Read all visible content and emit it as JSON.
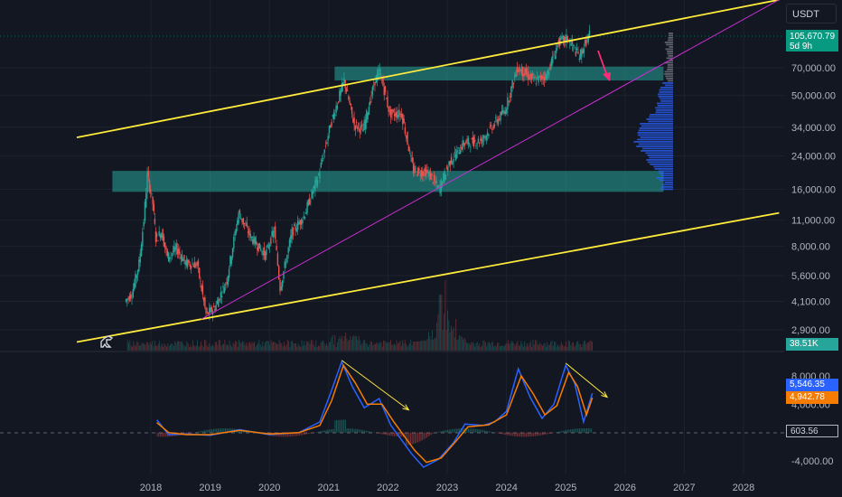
{
  "currency": "USDT",
  "price_badge": {
    "price": "105,670.79",
    "countdown": "5d 9h",
    "color": "#089981"
  },
  "volume_badge": "38.51K",
  "indicator_badges": [
    {
      "text": "5,546.35",
      "color": "#2962ff"
    },
    {
      "text": "4,942.78",
      "color": "#f57c00"
    },
    {
      "text": "603.56",
      "color": "#131722"
    }
  ],
  "chart_data": [
    {
      "type": "line",
      "subtype": "candlestick",
      "y_scale": "log",
      "ylim": [
        2200,
        160000
      ],
      "y_ticks": [
        "70,000.00",
        "50,000.00",
        "34,000.00",
        "24,000.00",
        "16,000.00",
        "11,000.00",
        "8,000.00",
        "5,600.00",
        "4,100.00",
        "2,900.00"
      ],
      "x_ticks": [
        "2018",
        "2019",
        "2020",
        "2021",
        "2022",
        "2023",
        "2024",
        "2025",
        "2026",
        "2027",
        "2028"
      ],
      "xlim": [
        2017.0,
        2028.6
      ],
      "price_path": [
        {
          "x": 2017.58,
          "y": 4100
        },
        {
          "x": 2017.7,
          "y": 4500
        },
        {
          "x": 2017.82,
          "y": 6500
        },
        {
          "x": 2017.9,
          "y": 11000
        },
        {
          "x": 2017.96,
          "y": 19000
        },
        {
          "x": 2018.05,
          "y": 13500
        },
        {
          "x": 2018.1,
          "y": 8800
        },
        {
          "x": 2018.2,
          "y": 9500
        },
        {
          "x": 2018.3,
          "y": 7000
        },
        {
          "x": 2018.45,
          "y": 7800
        },
        {
          "x": 2018.6,
          "y": 6500
        },
        {
          "x": 2018.8,
          "y": 6400
        },
        {
          "x": 2018.95,
          "y": 3500
        },
        {
          "x": 2019.1,
          "y": 3800
        },
        {
          "x": 2019.3,
          "y": 5300
        },
        {
          "x": 2019.5,
          "y": 12000
        },
        {
          "x": 2019.7,
          "y": 9000
        },
        {
          "x": 2019.95,
          "y": 7200
        },
        {
          "x": 2020.1,
          "y": 9800
        },
        {
          "x": 2020.2,
          "y": 4800
        },
        {
          "x": 2020.4,
          "y": 9500
        },
        {
          "x": 2020.6,
          "y": 11500
        },
        {
          "x": 2020.85,
          "y": 19000
        },
        {
          "x": 2021.05,
          "y": 35000
        },
        {
          "x": 2021.28,
          "y": 60000
        },
        {
          "x": 2021.45,
          "y": 35000
        },
        {
          "x": 2021.6,
          "y": 33000
        },
        {
          "x": 2021.8,
          "y": 60000
        },
        {
          "x": 2021.88,
          "y": 67000
        },
        {
          "x": 2022.05,
          "y": 40000
        },
        {
          "x": 2022.25,
          "y": 40000
        },
        {
          "x": 2022.45,
          "y": 20000
        },
        {
          "x": 2022.7,
          "y": 19500
        },
        {
          "x": 2022.88,
          "y": 16000
        },
        {
          "x": 2023.05,
          "y": 22000
        },
        {
          "x": 2023.3,
          "y": 28000
        },
        {
          "x": 2023.6,
          "y": 29000
        },
        {
          "x": 2023.8,
          "y": 35000
        },
        {
          "x": 2024.0,
          "y": 42000
        },
        {
          "x": 2024.2,
          "y": 70000
        },
        {
          "x": 2024.5,
          "y": 60000
        },
        {
          "x": 2024.7,
          "y": 64000
        },
        {
          "x": 2024.9,
          "y": 96000
        },
        {
          "x": 2025.05,
          "y": 100000
        },
        {
          "x": 2025.25,
          "y": 80000
        },
        {
          "x": 2025.42,
          "y": 105670
        }
      ],
      "trend_lines": [
        {
          "color": "#ffeb3b",
          "from": {
            "x": 2016.75,
            "y": 30000
          },
          "to": {
            "x": 2028.6,
            "y": 160000
          }
        },
        {
          "color": "#ffeb3b",
          "from": {
            "x": 2016.75,
            "y": 2500
          },
          "to": {
            "x": 2028.6,
            "y": 12000
          }
        },
        {
          "color": "#c62ecf",
          "from": {
            "x": 2018.85,
            "y": 3300
          },
          "to": {
            "x": 2028.6,
            "y": 160000
          }
        }
      ],
      "zones": [
        {
          "y_from": 60000,
          "y_to": 71000,
          "x_from": 2021.1,
          "x_to": 2026.65,
          "color": "#26a69a"
        },
        {
          "y_from": 15500,
          "y_to": 20000,
          "x_from": 2017.35,
          "x_to": 2026.65,
          "color": "#26a69a"
        }
      ],
      "volume_profile": true
    },
    {
      "type": "line",
      "ylim": [
        -5200,
        10500
      ],
      "y_ticks": [
        "8,000.00",
        "4,000.00",
        "-4,000.00"
      ],
      "series": [
        {
          "color": "#2962ff",
          "values": [
            {
              "x": 2018.1,
              "y": 1800
            },
            {
              "x": 2018.3,
              "y": -300
            },
            {
              "x": 2018.6,
              "y": -200
            },
            {
              "x": 2019.0,
              "y": -400
            },
            {
              "x": 2019.5,
              "y": 400
            },
            {
              "x": 2020.0,
              "y": -300
            },
            {
              "x": 2020.5,
              "y": 0
            },
            {
              "x": 2020.85,
              "y": 1500
            },
            {
              "x": 2021.05,
              "y": 6000
            },
            {
              "x": 2021.22,
              "y": 10000
            },
            {
              "x": 2021.4,
              "y": 6500
            },
            {
              "x": 2021.6,
              "y": 3500
            },
            {
              "x": 2021.85,
              "y": 4800
            },
            {
              "x": 2022.05,
              "y": 1000
            },
            {
              "x": 2022.4,
              "y": -3000
            },
            {
              "x": 2022.6,
              "y": -4900
            },
            {
              "x": 2022.85,
              "y": -3800
            },
            {
              "x": 2023.1,
              "y": -1500
            },
            {
              "x": 2023.3,
              "y": 1200
            },
            {
              "x": 2023.6,
              "y": 1000
            },
            {
              "x": 2023.8,
              "y": 1500
            },
            {
              "x": 2024.0,
              "y": 3000
            },
            {
              "x": 2024.2,
              "y": 9000
            },
            {
              "x": 2024.4,
              "y": 5000
            },
            {
              "x": 2024.6,
              "y": 2000
            },
            {
              "x": 2024.8,
              "y": 4000
            },
            {
              "x": 2025.0,
              "y": 9500
            },
            {
              "x": 2025.15,
              "y": 7000
            },
            {
              "x": 2025.3,
              "y": 1500
            },
            {
              "x": 2025.45,
              "y": 5546
            }
          ]
        },
        {
          "color": "#f57c00",
          "values": [
            {
              "x": 2018.1,
              "y": 1400
            },
            {
              "x": 2018.3,
              "y": 0
            },
            {
              "x": 2018.6,
              "y": -300
            },
            {
              "x": 2019.0,
              "y": -300
            },
            {
              "x": 2019.5,
              "y": 300
            },
            {
              "x": 2020.0,
              "y": -200
            },
            {
              "x": 2020.5,
              "y": 0
            },
            {
              "x": 2020.85,
              "y": 1000
            },
            {
              "x": 2021.05,
              "y": 4500
            },
            {
              "x": 2021.25,
              "y": 9500
            },
            {
              "x": 2021.45,
              "y": 7000
            },
            {
              "x": 2021.65,
              "y": 4000
            },
            {
              "x": 2021.9,
              "y": 4000
            },
            {
              "x": 2022.1,
              "y": 1500
            },
            {
              "x": 2022.45,
              "y": -2500
            },
            {
              "x": 2022.65,
              "y": -4200
            },
            {
              "x": 2022.9,
              "y": -3600
            },
            {
              "x": 2023.15,
              "y": -1200
            },
            {
              "x": 2023.35,
              "y": 800
            },
            {
              "x": 2023.7,
              "y": 1100
            },
            {
              "x": 2024.0,
              "y": 2500
            },
            {
              "x": 2024.25,
              "y": 8000
            },
            {
              "x": 2024.45,
              "y": 5500
            },
            {
              "x": 2024.65,
              "y": 2500
            },
            {
              "x": 2024.85,
              "y": 3800
            },
            {
              "x": 2025.05,
              "y": 8500
            },
            {
              "x": 2025.2,
              "y": 6500
            },
            {
              "x": 2025.35,
              "y": 2500
            },
            {
              "x": 2025.45,
              "y": 4942
            }
          ]
        }
      ],
      "arrows": [
        {
          "color": "#ffeb3b",
          "from": {
            "x": 2021.22,
            "y": 10200
          },
          "to": {
            "x": 2022.35,
            "y": 3200
          }
        },
        {
          "color": "#ffeb3b",
          "from": {
            "x": 2025.0,
            "y": 9800
          },
          "to": {
            "x": 2025.7,
            "y": 5000
          }
        }
      ]
    }
  ]
}
